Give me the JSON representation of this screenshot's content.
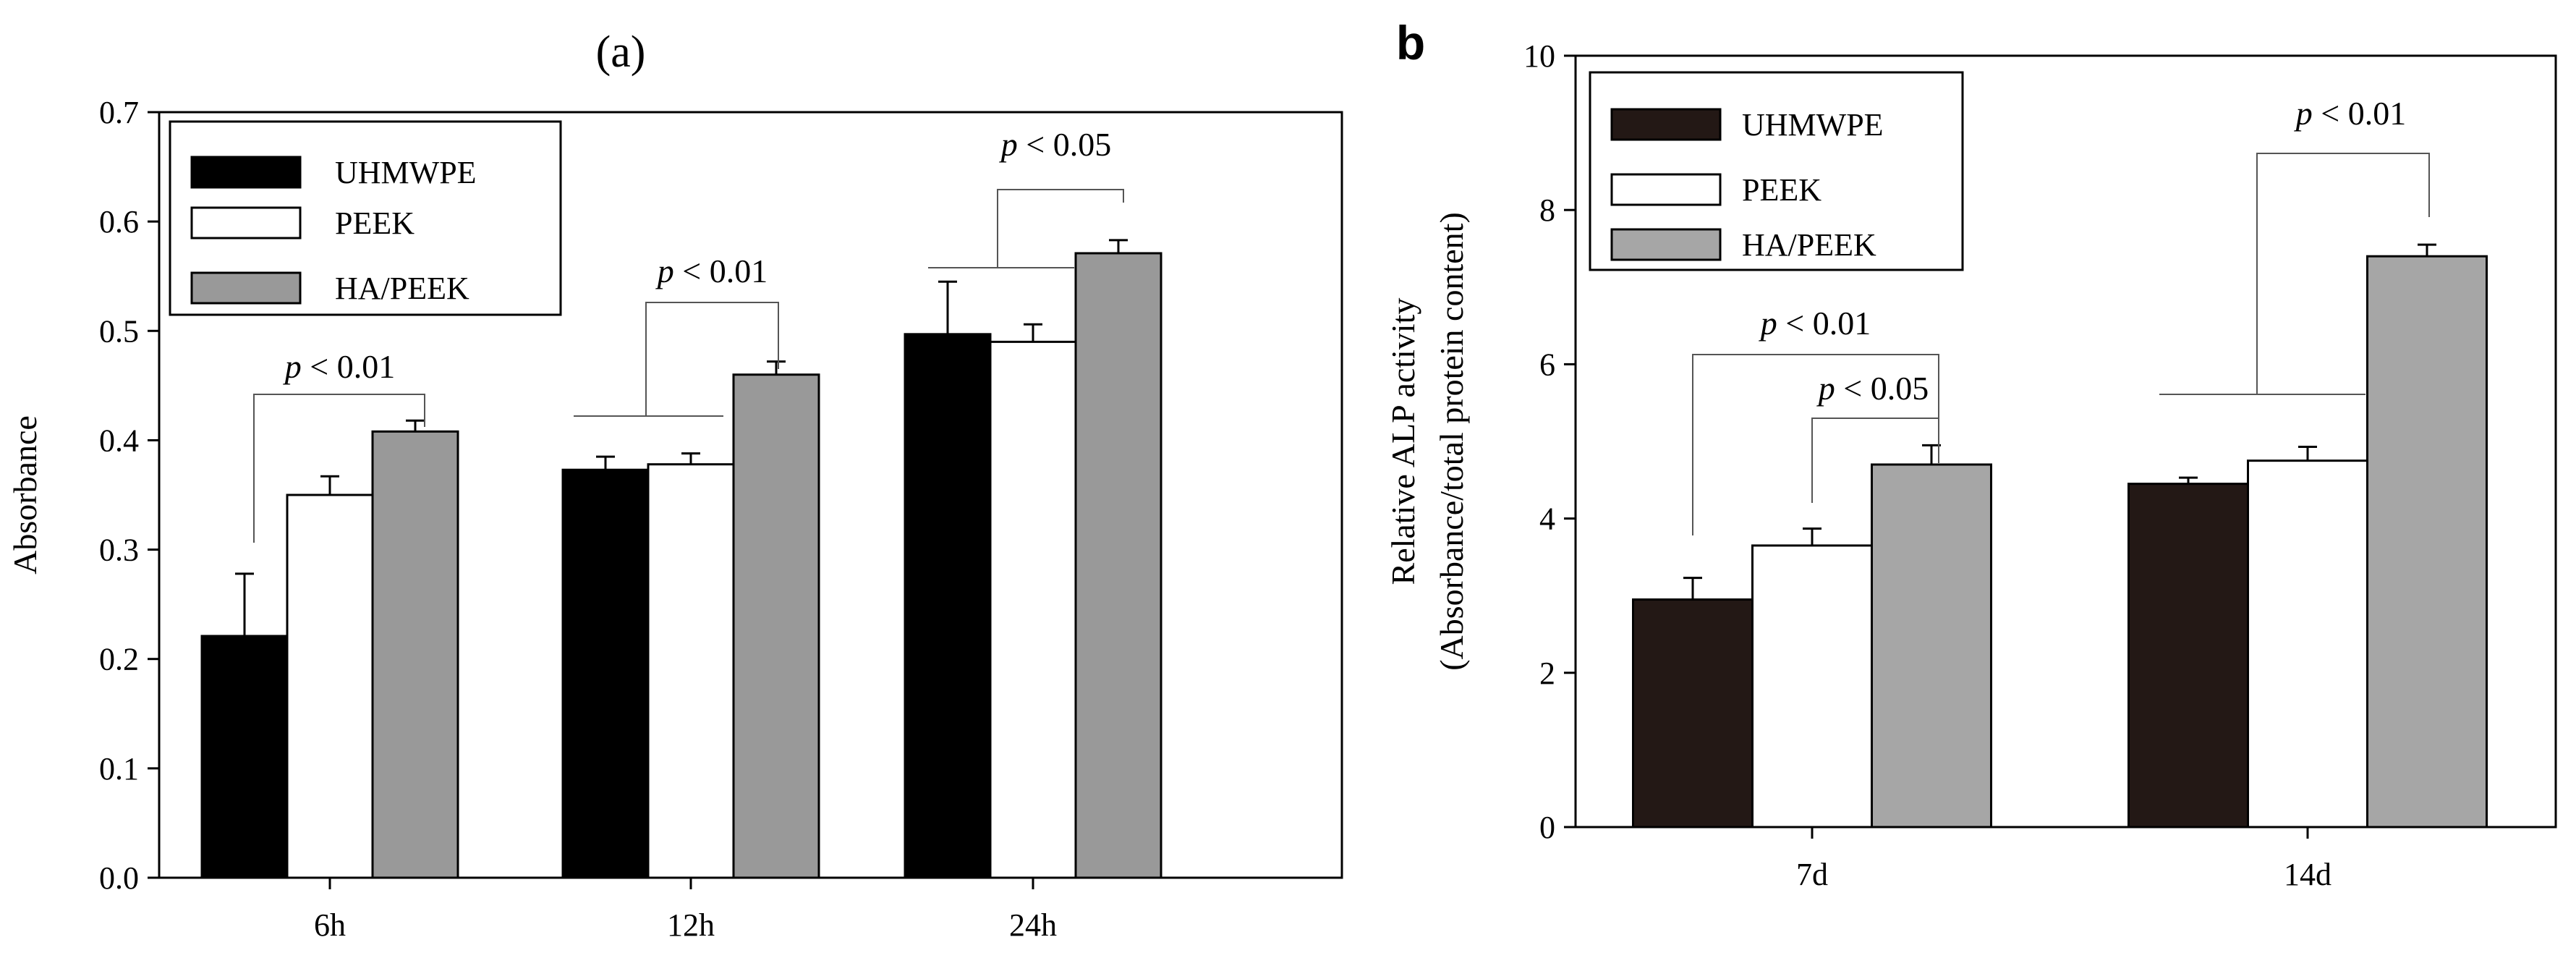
{
  "colors": {
    "a_series": [
      "#000000",
      "#ffffff",
      "#999999"
    ],
    "b_series": [
      "#231815",
      "#ffffff",
      "#a6a6a6"
    ]
  },
  "chart_data": [
    {
      "id": "a",
      "panel_label": "(a)",
      "type": "bar",
      "title": "",
      "xlabel": "",
      "ylabel": "Absorbance",
      "categories": [
        "6h",
        "12h",
        "24h"
      ],
      "ylim": [
        0.0,
        0.7
      ],
      "yticks": [
        "0.0",
        "0.1",
        "0.2",
        "0.3",
        "0.4",
        "0.5",
        "0.6",
        "0.7"
      ],
      "series": [
        {
          "name": "UHMWPE",
          "values": [
            0.221,
            0.373,
            0.497
          ],
          "errors": [
            0.057,
            0.012,
            0.048
          ]
        },
        {
          "name": "PEEK",
          "values": [
            0.35,
            0.378,
            0.49
          ],
          "errors": [
            0.017,
            0.01,
            0.016
          ]
        },
        {
          "name": "HA/PEEK",
          "values": [
            0.408,
            0.46,
            0.571
          ],
          "errors": [
            0.01,
            0.012,
            0.012
          ]
        }
      ],
      "legend_position": "top-left",
      "grid": false,
      "annotations": [
        {
          "label": "p < 0.01",
          "category": 0
        },
        {
          "label": "p < 0.01",
          "category": 1
        },
        {
          "label": "p < 0.05",
          "category": 2
        }
      ]
    },
    {
      "id": "b",
      "panel_label": "b",
      "type": "bar",
      "title": "",
      "xlabel": "",
      "ylabel": "Relative ALP activity",
      "ylabel2": "(Absorbance/total protein content)",
      "categories": [
        "7d",
        "14d"
      ],
      "ylim": [
        0,
        10
      ],
      "yticks": [
        "0",
        "2",
        "4",
        "6",
        "8",
        "10"
      ],
      "series": [
        {
          "name": "UHMWPE",
          "values": [
            2.95,
            4.45
          ],
          "errors": [
            0.28,
            0.08
          ]
        },
        {
          "name": "PEEK",
          "values": [
            3.65,
            4.75
          ],
          "errors": [
            0.22,
            0.18
          ]
        },
        {
          "name": "HA/PEEK",
          "values": [
            4.7,
            7.4
          ],
          "errors": [
            0.25,
            0.15
          ]
        }
      ],
      "legend_position": "top-left",
      "grid": false,
      "annotations": [
        {
          "label": "p < 0.01",
          "category": 0
        },
        {
          "label": "p < 0.05",
          "category": 0
        },
        {
          "label": "p < 0.01",
          "category": 1
        }
      ]
    }
  ]
}
